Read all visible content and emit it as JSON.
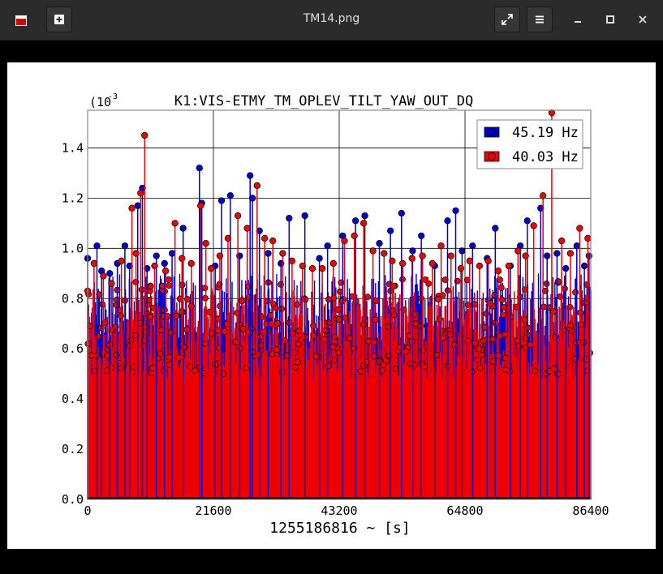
{
  "window": {
    "title": "TM14.png",
    "buttons": {
      "new_tab": "new-tab",
      "fullscreen": "fullscreen",
      "menu": "menu",
      "minimize": "minimize",
      "maximize": "maximize",
      "close": "close"
    }
  },
  "colors": {
    "titlebar": "#2b2b2b",
    "series_blue": "#0000cc",
    "series_red": "#ee0000"
  },
  "chart_data": {
    "type": "scatter",
    "style": "stem",
    "title": "K1:VIS-ETMY_TM_OPLEV_TILT_YAW_OUT_DQ",
    "xlabel": "1255186816 ~ [s]",
    "ylabel": "",
    "y_scale_label": "(10",
    "y_scale_exponent": "-3",
    "xlim": [
      0,
      86400
    ],
    "ylim": [
      0,
      0.00155
    ],
    "xticks": [
      0,
      21600,
      43200,
      64800,
      86400
    ],
    "xtick_labels": [
      "0",
      "21600",
      "43200",
      "64800",
      "86400"
    ],
    "yticks": [
      0,
      0.0002,
      0.0004,
      0.0006,
      0.0008,
      0.001,
      0.0012,
      0.0014
    ],
    "ytick_labels": [
      "0.0",
      "0.2",
      "0.4",
      "0.6",
      "0.8",
      "1.0",
      "1.2",
      "1.4"
    ],
    "grid": true,
    "legend_position": "top-right",
    "series": [
      {
        "name": "45.19 Hz",
        "color": "#0000cc",
        "description_points": "dense stems sampled across the day; notable maxima listed",
        "x": [
          0,
          1600,
          2400,
          3800,
          5100,
          6400,
          7200,
          8600,
          9400,
          10200,
          11800,
          13200,
          14500,
          16400,
          19200,
          19600,
          21900,
          23000,
          24500,
          26100,
          27900,
          28300,
          29500,
          31000,
          33200,
          34600,
          37300,
          39800,
          41200,
          43800,
          46000,
          47600,
          50100,
          52000,
          53900,
          55800,
          57300,
          59600,
          61800,
          63200,
          64300,
          66100,
          68600,
          70000,
          72600,
          74300,
          75500,
          77800,
          78900,
          80600,
          82100,
          84000,
          85300,
          86100
        ],
        "y": [
          0.00096,
          0.00101,
          0.00091,
          0.0009,
          0.00094,
          0.00101,
          0.00093,
          0.00117,
          0.00124,
          0.00092,
          0.00097,
          0.00094,
          0.00098,
          0.00108,
          0.00132,
          0.00118,
          0.00093,
          0.00119,
          0.00121,
          0.00097,
          0.00129,
          0.0012,
          0.00107,
          0.00098,
          0.00094,
          0.00112,
          0.00113,
          0.00096,
          0.00101,
          0.00105,
          0.00111,
          0.00113,
          0.00102,
          0.00107,
          0.00114,
          0.00099,
          0.00105,
          0.00093,
          0.00111,
          0.00115,
          0.00099,
          0.00101,
          0.00096,
          0.00108,
          0.00093,
          0.00101,
          0.00111,
          0.00116,
          0.00097,
          0.00098,
          0.00092,
          0.00101,
          0.00093,
          0.00097
        ]
      },
      {
        "name": "40.03 Hz",
        "color": "#ee0000",
        "description_points": "dense stems sampled across the day; notable maxima listed",
        "x": [
          0,
          1100,
          2700,
          4100,
          5800,
          7600,
          8300,
          9100,
          9800,
          11500,
          13400,
          15000,
          16200,
          17800,
          19400,
          20300,
          21200,
          22700,
          24100,
          25800,
          27400,
          29100,
          30400,
          31800,
          33500,
          35100,
          36900,
          38600,
          40300,
          42200,
          44100,
          45800,
          47400,
          49000,
          50900,
          52300,
          54100,
          55700,
          57500,
          59200,
          60700,
          62400,
          64100,
          65600,
          67300,
          68800,
          70500,
          72300,
          73900,
          75200,
          76600,
          78200,
          79700,
          81400,
          82900,
          84500,
          85900
        ],
        "y": [
          0.00083,
          0.00094,
          0.00089,
          0.00086,
          0.00095,
          0.00116,
          0.00098,
          0.00122,
          0.00145,
          0.00093,
          0.00091,
          0.0011,
          0.00096,
          0.00094,
          0.00117,
          0.00102,
          0.00092,
          0.00097,
          0.00104,
          0.00113,
          0.00108,
          0.00125,
          0.00104,
          0.00103,
          0.00098,
          0.00095,
          0.00093,
          0.00092,
          0.00092,
          0.00094,
          0.00103,
          0.00105,
          0.0011,
          0.00099,
          0.00098,
          0.00095,
          0.00094,
          0.00096,
          0.00097,
          0.00094,
          0.00101,
          0.00097,
          0.00092,
          0.00095,
          0.00093,
          0.00095,
          0.00091,
          0.00093,
          0.00099,
          0.00097,
          0.00109,
          0.00121,
          0.00154,
          0.00103,
          0.00098,
          0.00108,
          0.00104
        ]
      }
    ],
    "legend": [
      {
        "label": "45.19 Hz",
        "color": "#0000cc"
      },
      {
        "label": "40.03 Hz",
        "color": "#ee0000"
      }
    ]
  }
}
